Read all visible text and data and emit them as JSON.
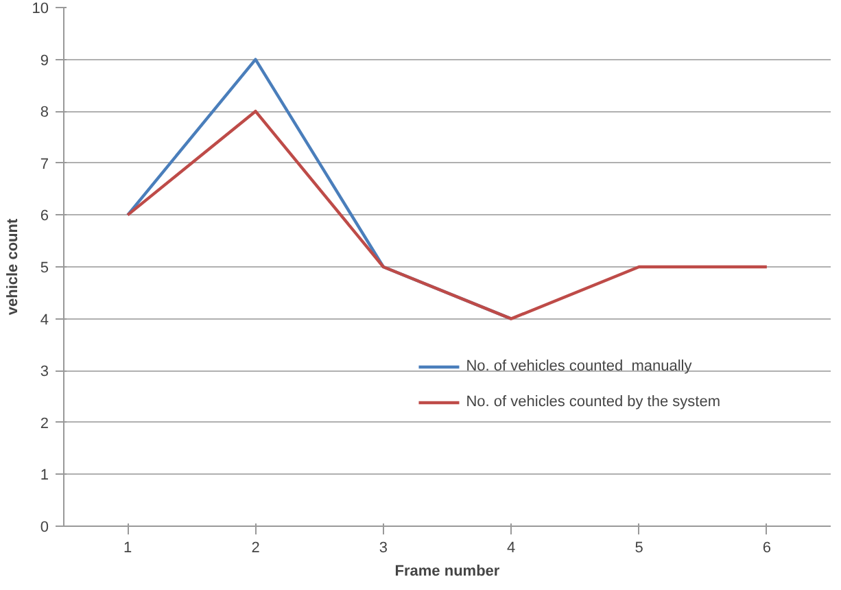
{
  "chart_data": {
    "type": "line",
    "xlabel": "Frame number",
    "ylabel": "vehicle count",
    "categories": [
      "1",
      "2",
      "3",
      "4",
      "5",
      "6"
    ],
    "series": [
      {
        "name": "No. of vehicles counted  manually",
        "color": "#4a7ebb",
        "values": [
          6,
          9,
          5,
          4,
          null,
          null
        ]
      },
      {
        "name": "No. of vehicles counted by the system",
        "color": "#be4b48",
        "values": [
          6,
          8,
          5,
          4,
          5,
          5
        ]
      }
    ],
    "ylim": [
      0,
      10
    ],
    "yticks": [
      0,
      1,
      2,
      3,
      4,
      5,
      6,
      7,
      8,
      9,
      10
    ],
    "grid": "y",
    "legend": "bottom right",
    "marker": "none",
    "line_style": "solid"
  }
}
